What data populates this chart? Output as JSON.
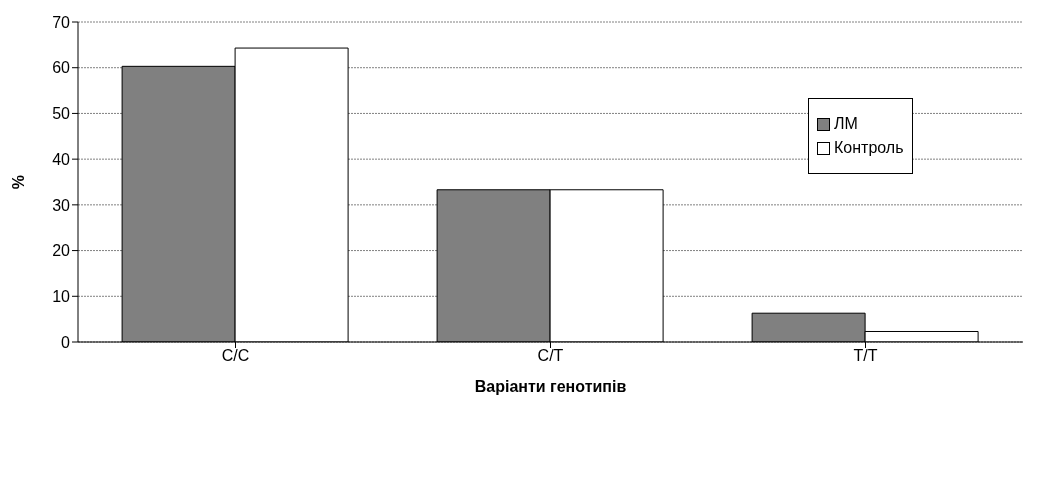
{
  "chart_data": {
    "type": "bar",
    "xlabel": "Варіанти генотипів",
    "ylabel": "%",
    "categories": [
      "C/C",
      "C/T",
      "T/T"
    ],
    "series": [
      {
        "name": "ЛМ",
        "color": "#808080",
        "values": [
          60.3,
          33.3,
          6.3
        ]
      },
      {
        "name": "Контроль",
        "color": "#ffffff",
        "values": [
          64.3,
          33.3,
          2.3
        ]
      }
    ],
    "ylim": [
      0,
      70
    ],
    "yticks": [
      0,
      10,
      20,
      30,
      40,
      50,
      60,
      70
    ],
    "grid": "y",
    "legend": "right"
  }
}
